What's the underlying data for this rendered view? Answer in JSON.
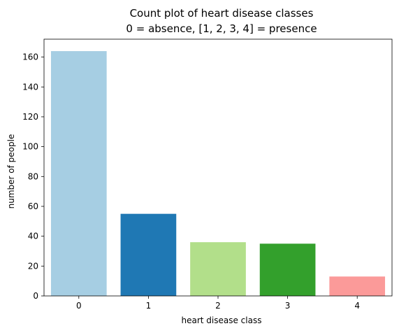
{
  "chart_data": {
    "type": "bar",
    "title": "Count plot of heart disease classes",
    "subtitle": "0 = absence, [1, 2, 3, 4] = presence",
    "xlabel": "heart disease class",
    "ylabel": "number of people",
    "categories": [
      "0",
      "1",
      "2",
      "3",
      "4"
    ],
    "values": [
      164,
      55,
      36,
      35,
      13
    ],
    "colors": [
      "#a6cee3",
      "#1f78b4",
      "#b2df8a",
      "#33a02c",
      "#fb9a99"
    ],
    "ylim": [
      0,
      172
    ],
    "yticks": [
      0,
      20,
      40,
      60,
      80,
      100,
      120,
      140,
      160
    ],
    "grid": false,
    "legend": "none"
  }
}
